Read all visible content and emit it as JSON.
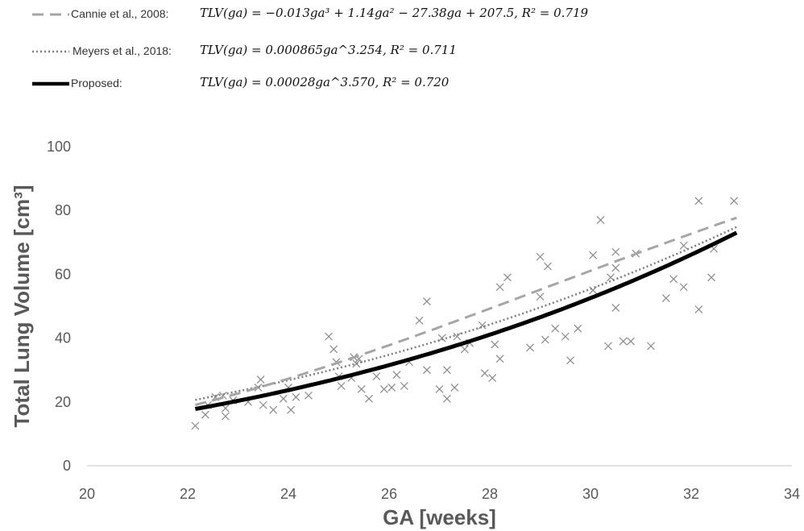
{
  "legend": {
    "cannie": {
      "name": "Cannie et al., 2008:",
      "equation": "TLV(ga) = −0.013ga³ + 1.14ga² − 27.38ga + 207.5, R² = 0.719"
    },
    "meyers": {
      "name": "Meyers et al., 2018:",
      "equation": "TLV(ga) = 0.000865ga^3.254, R² = 0.711"
    },
    "proposed": {
      "name": "Proposed:",
      "equation": "TLV(ga) = 0.00028ga^3.570, R² = 0.720"
    }
  },
  "chart_data": {
    "type": "scatter",
    "xlabel": "GA [weeks]",
    "ylabel": "Total Lung Volume [cm³]",
    "xlim": [
      20,
      34
    ],
    "ylim": [
      0,
      100
    ],
    "xticks": [
      "20",
      "22",
      "24",
      "26",
      "28",
      "30",
      "32",
      "34"
    ],
    "yticks": [
      "0",
      "20",
      "40",
      "60",
      "80",
      "100"
    ],
    "grid": false,
    "legend_position": "top",
    "colors": {
      "points": "#8a8a8a",
      "cannie": "#a6a6a6",
      "meyers": "#7f7f7f",
      "proposed": "#000000",
      "axis": "#d9d9d9"
    },
    "points": [
      [
        22.15,
        12.5
      ],
      [
        22.35,
        16
      ],
      [
        22.4,
        19
      ],
      [
        22.55,
        21.5
      ],
      [
        22.7,
        22
      ],
      [
        22.75,
        15.5
      ],
      [
        22.75,
        18
      ],
      [
        22.9,
        20.5
      ],
      [
        23.2,
        20
      ],
      [
        23.4,
        24.5
      ],
      [
        23.45,
        27
      ],
      [
        23.5,
        19
      ],
      [
        23.7,
        17.5
      ],
      [
        23.9,
        21
      ],
      [
        24.0,
        24.5
      ],
      [
        24.05,
        17.5
      ],
      [
        24.15,
        21.5
      ],
      [
        24.4,
        22
      ],
      [
        24.8,
        40.5
      ],
      [
        24.9,
        36.5
      ],
      [
        24.95,
        32.5
      ],
      [
        25.0,
        28
      ],
      [
        25.05,
        25
      ],
      [
        25.25,
        27.5
      ],
      [
        25.3,
        34
      ],
      [
        25.35,
        32
      ],
      [
        25.4,
        33.5
      ],
      [
        25.45,
        24
      ],
      [
        25.6,
        21
      ],
      [
        25.75,
        28
      ],
      [
        25.9,
        24
      ],
      [
        26.05,
        24.5
      ],
      [
        26.15,
        28.5
      ],
      [
        26.3,
        25
      ],
      [
        26.4,
        32.5
      ],
      [
        26.6,
        45.5
      ],
      [
        26.75,
        51.5
      ],
      [
        26.75,
        30
      ],
      [
        27.0,
        24
      ],
      [
        27.05,
        40
      ],
      [
        27.15,
        21
      ],
      [
        27.15,
        30
      ],
      [
        27.3,
        24.5
      ],
      [
        27.35,
        40.5
      ],
      [
        27.5,
        36.5
      ],
      [
        27.6,
        38.5
      ],
      [
        27.85,
        44
      ],
      [
        27.9,
        29
      ],
      [
        28.05,
        27.5
      ],
      [
        28.1,
        38
      ],
      [
        28.2,
        56
      ],
      [
        28.2,
        33.5
      ],
      [
        28.35,
        59
      ],
      [
        28.8,
        37
      ],
      [
        29.0,
        65.5
      ],
      [
        29.0,
        53
      ],
      [
        29.1,
        39.5
      ],
      [
        29.15,
        62.5
      ],
      [
        29.3,
        43
      ],
      [
        29.5,
        40.5
      ],
      [
        29.6,
        33
      ],
      [
        29.75,
        43
      ],
      [
        30.05,
        66
      ],
      [
        30.05,
        55
      ],
      [
        30.2,
        77
      ],
      [
        30.35,
        37.5
      ],
      [
        30.4,
        59
      ],
      [
        30.5,
        67
      ],
      [
        30.5,
        62
      ],
      [
        30.5,
        49.5
      ],
      [
        30.65,
        39
      ],
      [
        30.8,
        39
      ],
      [
        30.9,
        66.5
      ],
      [
        31.2,
        37.5
      ],
      [
        31.5,
        52.5
      ],
      [
        31.65,
        58.5
      ],
      [
        31.85,
        69
      ],
      [
        31.85,
        56
      ],
      [
        32.15,
        83
      ],
      [
        32.15,
        49
      ],
      [
        32.4,
        59
      ],
      [
        32.45,
        68
      ],
      [
        32.85,
        83
      ]
    ]
  }
}
